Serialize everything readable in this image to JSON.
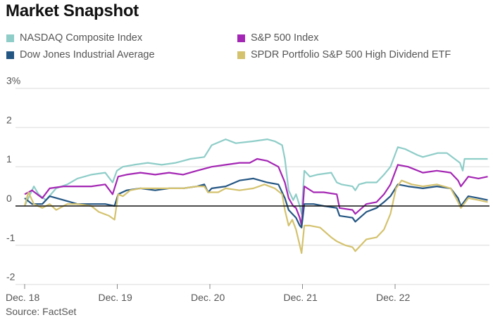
{
  "title": "Market Snapshot",
  "source": "Source: FactSet",
  "legend": [
    {
      "label": "NASDAQ Composite Index",
      "color": "#8ecdc8"
    },
    {
      "label": "S&P 500 Index",
      "color": "#a426b4"
    },
    {
      "label": "Dow Jones Industrial Average",
      "color": "#245683"
    },
    {
      "label": "SPDR Portfolio S&P 500 High Dividend ETF",
      "color": "#d4c26e"
    }
  ],
  "chart_data": {
    "type": "line",
    "title": "Market Snapshot",
    "xlabel": "",
    "ylabel": "",
    "ylim": [
      -2,
      3
    ],
    "xlim": [
      0,
      5.02
    ],
    "yticks": [
      {
        "value": 3,
        "label": "3%"
      },
      {
        "value": 2,
        "label": "2"
      },
      {
        "value": 1,
        "label": "1"
      },
      {
        "value": 0,
        "label": "0"
      },
      {
        "value": -1,
        "label": "-1"
      },
      {
        "value": -2,
        "label": "-2"
      }
    ],
    "xticks": [
      {
        "value": 0,
        "label": "Dec. 18"
      },
      {
        "value": 1,
        "label": "Dec. 19"
      },
      {
        "value": 2,
        "label": "Dec. 20"
      },
      {
        "value": 3,
        "label": "Dec. 21"
      },
      {
        "value": 4,
        "label": "Dec. 22"
      }
    ],
    "x_unit": "days since Dec. 18 (tick = Dec. 18..22)",
    "grid": true,
    "zero_line": true,
    "legend_position": "top",
    "series": [
      {
        "name": "NASDAQ Composite Index",
        "color": "#8ecdc8",
        "x": [
          0,
          0.04,
          0.1,
          0.15,
          0.23,
          0.34,
          0.46,
          0.57,
          0.72,
          0.87,
          0.95,
          0.996,
          1.06,
          1.18,
          1.33,
          1.48,
          1.63,
          1.79,
          1.94,
          2.02,
          2.17,
          2.28,
          2.47,
          2.62,
          2.7,
          2.78,
          2.81,
          2.85,
          2.9,
          2.93,
          2.97,
          2.99,
          3.02,
          3.08,
          3.16,
          3.31,
          3.37,
          3.42,
          3.54,
          3.57,
          3.61,
          3.69,
          3.8,
          3.88,
          3.95,
          4.03,
          4.11,
          4.24,
          4.3,
          4.46,
          4.56,
          4.7,
          4.73,
          4.75,
          4.79,
          4.86,
          4.98,
          5.0
        ],
        "y": [
          0,
          0.2,
          0.5,
          0.3,
          0.15,
          0.45,
          0.55,
          0.7,
          0.8,
          0.85,
          0.6,
          0.9,
          1.0,
          1.05,
          1.1,
          1.05,
          1.1,
          1.2,
          1.25,
          1.55,
          1.7,
          1.6,
          1.65,
          1.7,
          1.65,
          1.55,
          1.2,
          0.4,
          0.15,
          0.3,
          0.0,
          -0.2,
          0.9,
          0.75,
          0.8,
          0.85,
          0.6,
          0.55,
          0.5,
          0.4,
          0.55,
          0.6,
          0.6,
          0.8,
          1.0,
          1.5,
          1.45,
          1.3,
          1.25,
          1.35,
          1.35,
          1.1,
          0.9,
          1.2,
          1.2,
          1.2,
          1.2,
          1.2
        ]
      },
      {
        "name": "S&P 500 Index",
        "color": "#a426b4",
        "x": [
          0,
          0.08,
          0.19,
          0.27,
          0.42,
          0.57,
          0.72,
          0.87,
          0.95,
          1.01,
          1.1,
          1.25,
          1.41,
          1.56,
          1.71,
          1.86,
          2.02,
          2.17,
          2.32,
          2.43,
          2.51,
          2.62,
          2.74,
          2.81,
          2.85,
          2.9,
          2.93,
          2.97,
          2.99,
          3.02,
          3.12,
          3.23,
          3.37,
          3.4,
          3.54,
          3.57,
          3.69,
          3.8,
          3.88,
          3.95,
          4.03,
          4.14,
          4.3,
          4.45,
          4.6,
          4.68,
          4.71,
          4.79,
          4.9,
          5.0
        ],
        "y": [
          0.3,
          0.4,
          0.2,
          0.45,
          0.5,
          0.5,
          0.5,
          0.55,
          0.3,
          0.75,
          0.8,
          0.85,
          0.8,
          0.85,
          0.8,
          0.9,
          1.0,
          1.05,
          1.1,
          1.1,
          1.2,
          1.15,
          1.0,
          0.6,
          0.2,
          0.0,
          -0.05,
          -0.3,
          -0.5,
          0.5,
          0.35,
          0.35,
          0.3,
          -0.05,
          -0.1,
          -0.2,
          0.05,
          0.1,
          0.3,
          0.55,
          1.05,
          1.0,
          0.85,
          0.9,
          0.85,
          0.65,
          0.5,
          0.75,
          0.7,
          0.75
        ]
      },
      {
        "name": "Dow Jones Industrial Average",
        "color": "#245683",
        "x": [
          0,
          0.08,
          0.19,
          0.27,
          0.42,
          0.57,
          0.72,
          0.87,
          0.97,
          1.01,
          1.1,
          1.25,
          1.41,
          1.56,
          1.71,
          1.86,
          1.94,
          1.98,
          2.02,
          2.17,
          2.32,
          2.47,
          2.62,
          2.74,
          2.81,
          2.85,
          2.93,
          2.97,
          2.99,
          3.02,
          3.12,
          3.23,
          3.37,
          3.4,
          3.54,
          3.57,
          3.69,
          3.8,
          3.88,
          3.95,
          4.03,
          4.14,
          4.3,
          4.45,
          4.6,
          4.68,
          4.71,
          4.79,
          4.9,
          5.0
        ],
        "y": [
          0.2,
          0.05,
          0.05,
          0.25,
          0.15,
          0.05,
          0.05,
          0.05,
          0.0,
          0.3,
          0.4,
          0.45,
          0.4,
          0.45,
          0.45,
          0.5,
          0.55,
          0.35,
          0.45,
          0.5,
          0.65,
          0.7,
          0.6,
          0.55,
          0.2,
          -0.1,
          -0.3,
          -0.5,
          -0.55,
          0.05,
          0.05,
          0.0,
          -0.05,
          -0.25,
          -0.3,
          -0.4,
          -0.15,
          -0.05,
          0.1,
          0.25,
          0.55,
          0.5,
          0.45,
          0.5,
          0.45,
          0.2,
          0.0,
          0.25,
          0.2,
          0.15
        ]
      },
      {
        "name": "SPDR Portfolio S&P 500 High Dividend ETF",
        "color": "#d4c26e",
        "x": [
          0,
          0.04,
          0.1,
          0.19,
          0.27,
          0.34,
          0.46,
          0.57,
          0.72,
          0.8,
          0.91,
          0.97,
          1.01,
          1.06,
          1.14,
          1.25,
          1.48,
          1.71,
          1.86,
          1.94,
          1.98,
          2.02,
          2.09,
          2.17,
          2.32,
          2.47,
          2.59,
          2.7,
          2.78,
          2.81,
          2.85,
          2.89,
          2.93,
          2.97,
          2.99,
          3.02,
          3.08,
          3.19,
          3.31,
          3.37,
          3.46,
          3.54,
          3.57,
          3.69,
          3.8,
          3.88,
          3.95,
          4.01,
          4.07,
          4.18,
          4.3,
          4.45,
          4.6,
          4.68,
          4.71,
          4.79,
          4.9,
          5.0
        ],
        "y": [
          0,
          0.35,
          0.05,
          -0.05,
          0.05,
          -0.1,
          0.05,
          0.05,
          0.0,
          -0.15,
          -0.25,
          -0.35,
          0.3,
          0.25,
          0.4,
          0.45,
          0.45,
          0.45,
          0.5,
          0.5,
          0.35,
          0.35,
          0.35,
          0.45,
          0.4,
          0.45,
          0.55,
          0.45,
          0.3,
          -0.1,
          -0.5,
          -0.35,
          -0.6,
          -1.0,
          -1.2,
          -0.5,
          -0.5,
          -0.55,
          -0.8,
          -0.9,
          -1.0,
          -1.05,
          -1.15,
          -0.85,
          -0.8,
          -0.6,
          -0.2,
          0.45,
          0.65,
          0.55,
          0.5,
          0.55,
          0.45,
          0.1,
          -0.05,
          0.2,
          0.15,
          0.1
        ]
      }
    ]
  }
}
